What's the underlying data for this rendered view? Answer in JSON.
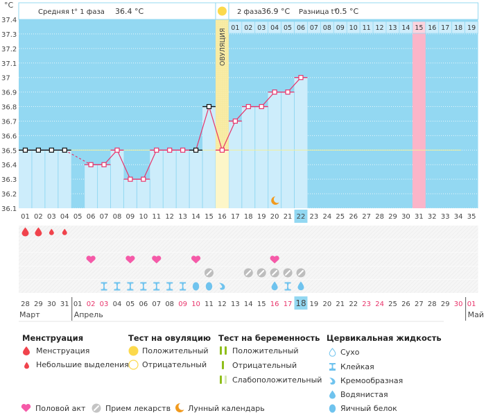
{
  "header": {
    "unit": "°C",
    "phase1_label": "Средняя t° 1 фаза",
    "phase1_value": "36.4 °C",
    "phase2_label": "2 фаза",
    "phase2_value": "36.9 °C",
    "diff_label": "Разница t°",
    "diff_value": "0.5 °C",
    "ovulation_label": "ОВУЛЯЦИЯ"
  },
  "colors": {
    "background_sky": "#93d8f2",
    "bar_fill": "#cdedfb",
    "line": "#e8336a",
    "coverline": "#f4ef9a",
    "ovulation_band": "#f7eaa0",
    "expected_period": "#fbb5c9",
    "weekend_red": "#e8336a",
    "menstruation": "#f0434c",
    "heart": "#f55aa8",
    "pill": "#bdbdbd",
    "fluid": "#6fc3ee",
    "moon": "#f19a1e",
    "test_green": "#8fbe1a"
  },
  "chart_data": {
    "type": "line",
    "title": "",
    "xlabel": "",
    "ylabel": "°C",
    "ylim": [
      36.1,
      37.4
    ],
    "yticks": [
      "36.1",
      "36.2",
      "36.3",
      "36.4",
      "36.5",
      "36.6",
      "36.7",
      "36.8",
      "36.9",
      "37",
      "37.1",
      "37.2",
      "37.3",
      "37.4"
    ],
    "cycle_days": [
      "01",
      "02",
      "03",
      "04",
      "05",
      "06",
      "07",
      "08",
      "09",
      "10",
      "11",
      "12",
      "13",
      "14",
      "15",
      "16",
      "17",
      "18",
      "19",
      "20",
      "21",
      "22",
      "23",
      "24",
      "25",
      "26",
      "27",
      "28",
      "29",
      "30",
      "31",
      "32",
      "33",
      "34",
      "35"
    ],
    "today_cycle_day": "22",
    "temperatures": [
      36.5,
      36.5,
      36.5,
      36.5,
      null,
      36.4,
      36.4,
      36.5,
      36.3,
      36.3,
      36.5,
      36.5,
      36.5,
      36.5,
      36.8,
      36.5,
      36.7,
      36.8,
      36.8,
      36.9,
      36.9,
      37.0
    ],
    "excluded_points": [
      1,
      2,
      3,
      4,
      14,
      15
    ],
    "coverline": 36.5,
    "ovulation_day": 16,
    "expected_period_day": 31,
    "luteal_day_labels": [
      "01",
      "02",
      "03",
      "04",
      "05",
      "06",
      "07",
      "08",
      "09",
      "10",
      "11",
      "12",
      "13",
      "14",
      "15",
      "16",
      "17",
      "18",
      "19"
    ],
    "luteal_highlight_label": "15",
    "moon_day": 20,
    "calendar_dates": [
      "28",
      "29",
      "30",
      "31",
      "01",
      "02",
      "03",
      "04",
      "05",
      "06",
      "07",
      "08",
      "09",
      "10",
      "11",
      "12",
      "13",
      "14",
      "15",
      "16",
      "17",
      "18",
      "19",
      "20",
      "21",
      "22",
      "23",
      "24",
      "25",
      "26",
      "27",
      "28",
      "29",
      "30",
      "01"
    ],
    "calendar_red_indexes": [
      5,
      6,
      12,
      13,
      19,
      20,
      26,
      27,
      33,
      34
    ],
    "calendar_today_index": 21,
    "months": [
      {
        "label": "Март",
        "start_index": 0
      },
      {
        "label": "Апрель",
        "start_index": 4
      },
      {
        "label": "Май",
        "start_index": 34
      }
    ],
    "menstruation_rows": [
      {
        "day": 1,
        "type": "heavy"
      },
      {
        "day": 2,
        "type": "heavy"
      },
      {
        "day": 3,
        "type": "spotting"
      },
      {
        "day": 4,
        "type": "spotting"
      }
    ],
    "intercourse_days": [
      6,
      9,
      11,
      14,
      20
    ],
    "medication_days": [
      15,
      18,
      19,
      20,
      21,
      22
    ],
    "cervical_fluid": [
      {
        "day": 7,
        "type": "sticky"
      },
      {
        "day": 8,
        "type": "sticky"
      },
      {
        "day": 9,
        "type": "sticky"
      },
      {
        "day": 10,
        "type": "sticky"
      },
      {
        "day": 11,
        "type": "sticky"
      },
      {
        "day": 12,
        "type": "sticky"
      },
      {
        "day": 13,
        "type": "sticky"
      },
      {
        "day": 14,
        "type": "eggwhite"
      },
      {
        "day": 15,
        "type": "eggwhite"
      },
      {
        "day": 16,
        "type": "creamy"
      },
      {
        "day": 20,
        "type": "watery"
      },
      {
        "day": 21,
        "type": "sticky"
      },
      {
        "day": 22,
        "type": "watery"
      }
    ]
  },
  "legend": {
    "menstruation": {
      "title": "Менструация",
      "items": [
        {
          "icon": "blood-drop-icon",
          "label": "Менструация"
        },
        {
          "icon": "small-blood-drop-icon",
          "label": "Небольшие выделения"
        }
      ]
    },
    "ovulation_test": {
      "title": "Тест на овуляцию",
      "items": [
        {
          "icon": "filled-circle-icon",
          "label": "Положительный"
        },
        {
          "icon": "empty-circle-icon",
          "label": "Отрицательный"
        }
      ]
    },
    "pregnancy_test": {
      "title": "Тест на беременность",
      "items": [
        {
          "icon": "double-line-icon",
          "label": "Положительный"
        },
        {
          "icon": "single-line-icon",
          "label": "Отрицательный"
        },
        {
          "icon": "faint-double-line-icon",
          "label": "Слабоположительный"
        }
      ]
    },
    "cervical_fluid": {
      "title": "Цервикальная жидкость",
      "items": [
        {
          "icon": "dry-icon",
          "label": "Сухо"
        },
        {
          "icon": "sticky-icon",
          "label": "Клейкая"
        },
        {
          "icon": "creamy-icon",
          "label": "Кремообразная"
        },
        {
          "icon": "watery-icon",
          "label": "Водянистая"
        },
        {
          "icon": "eggwhite-icon",
          "label": "Яичный белок"
        }
      ]
    },
    "other": [
      {
        "icon": "heart-icon",
        "label": "Половой акт"
      },
      {
        "icon": "pill-icon",
        "label": "Прием лекарств"
      },
      {
        "icon": "moon-icon",
        "label": "Лунный календарь"
      }
    ]
  }
}
